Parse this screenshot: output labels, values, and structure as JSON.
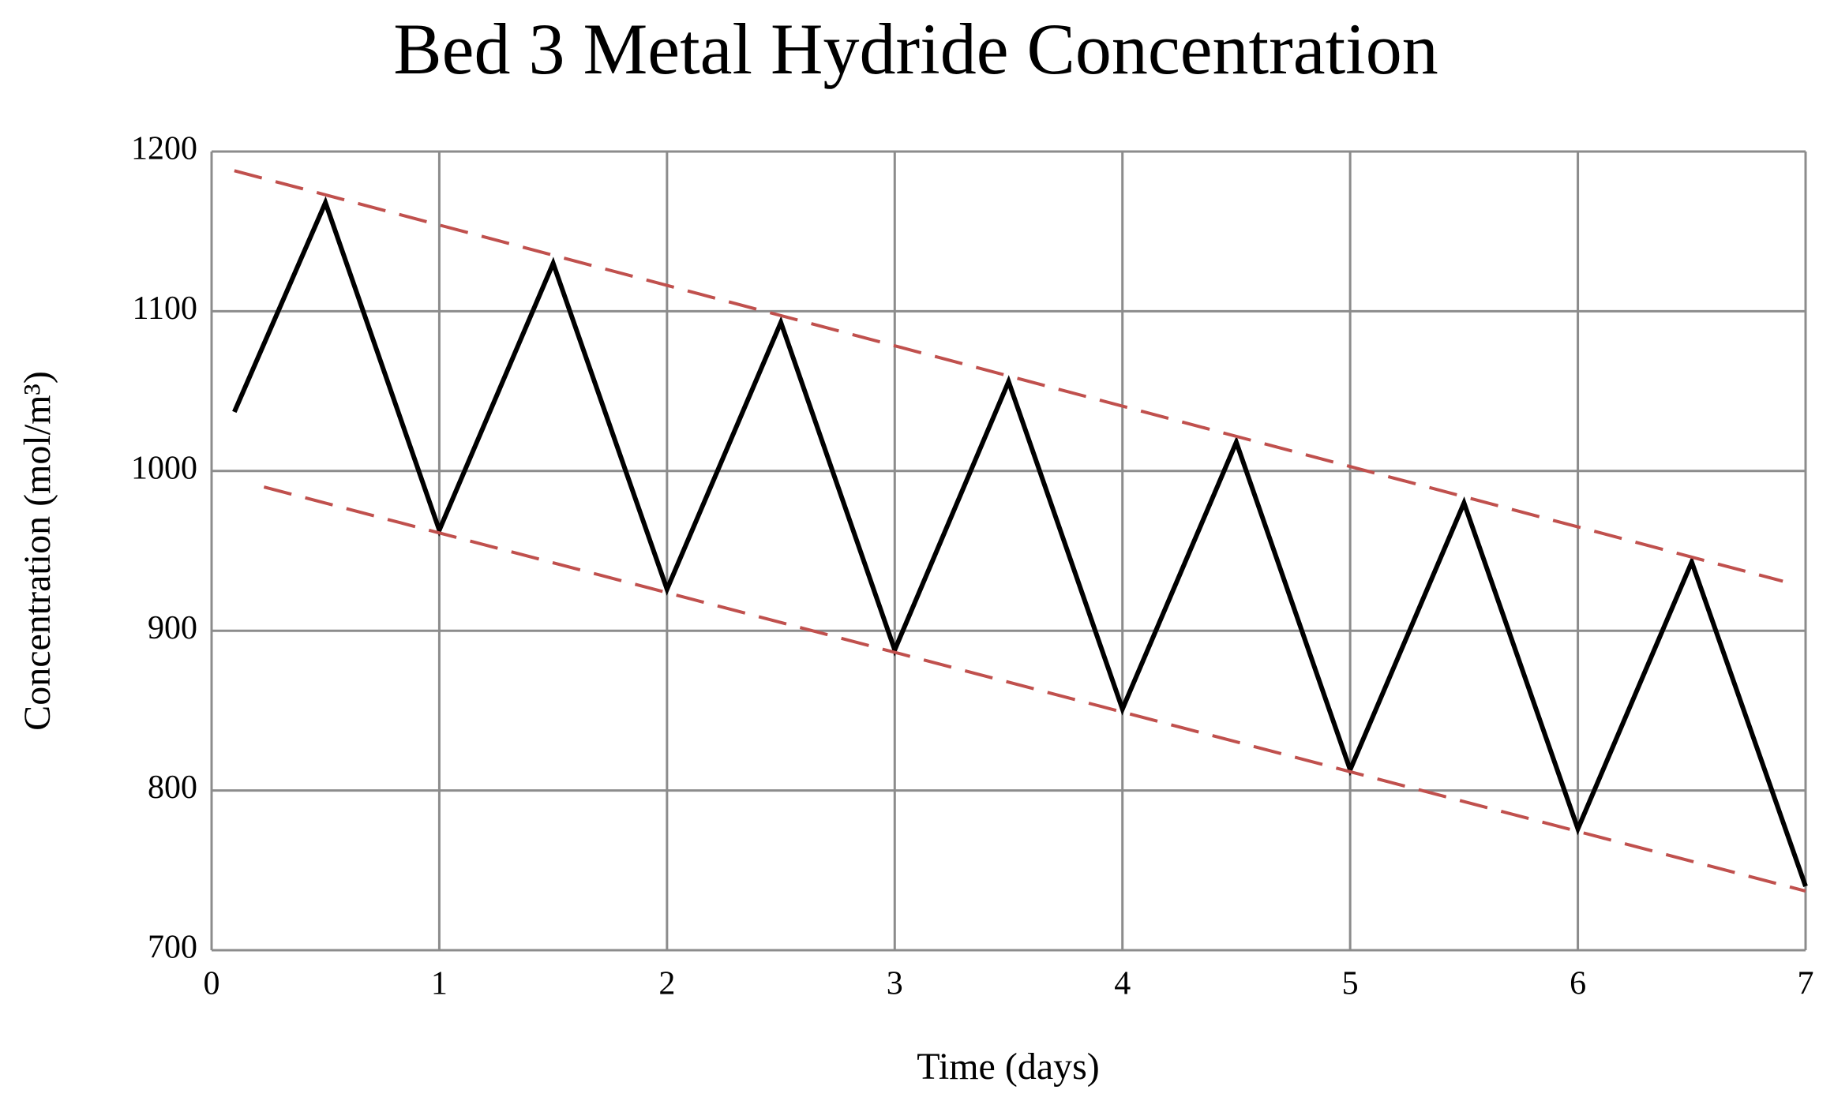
{
  "chart_data": {
    "type": "line",
    "title": "Bed 3 Metal Hydride Concentration",
    "xlabel": "Time (days)",
    "ylabel": "Concentration (mol/m³)",
    "xlim": [
      0,
      7
    ],
    "xticks": [
      0,
      1,
      2,
      3,
      4,
      5,
      6,
      7
    ],
    "ylim": [
      700,
      1200
    ],
    "yticks": [
      700,
      800,
      900,
      1000,
      1100,
      1200
    ],
    "grid": true,
    "series": [
      {
        "color": "#000000",
        "dash": false,
        "x": [
          0.1,
          0.5,
          1,
          1.5,
          2,
          2.5,
          3,
          3.5,
          4,
          4.5,
          5,
          5.5,
          6,
          6.5,
          7
        ],
        "values": [
          1037,
          1168,
          963,
          1130,
          926,
          1093,
          888,
          1056,
          851,
          1018,
          813,
          980,
          776,
          943,
          740
        ]
      },
      {
        "color": "#c0504d",
        "dash": true,
        "x": [
          0.1,
          6.9
        ],
        "values": [
          1188,
          931
        ]
      },
      {
        "color": "#c0504d",
        "dash": true,
        "x": [
          0.23,
          7
        ],
        "values": [
          990,
          737
        ]
      }
    ]
  }
}
